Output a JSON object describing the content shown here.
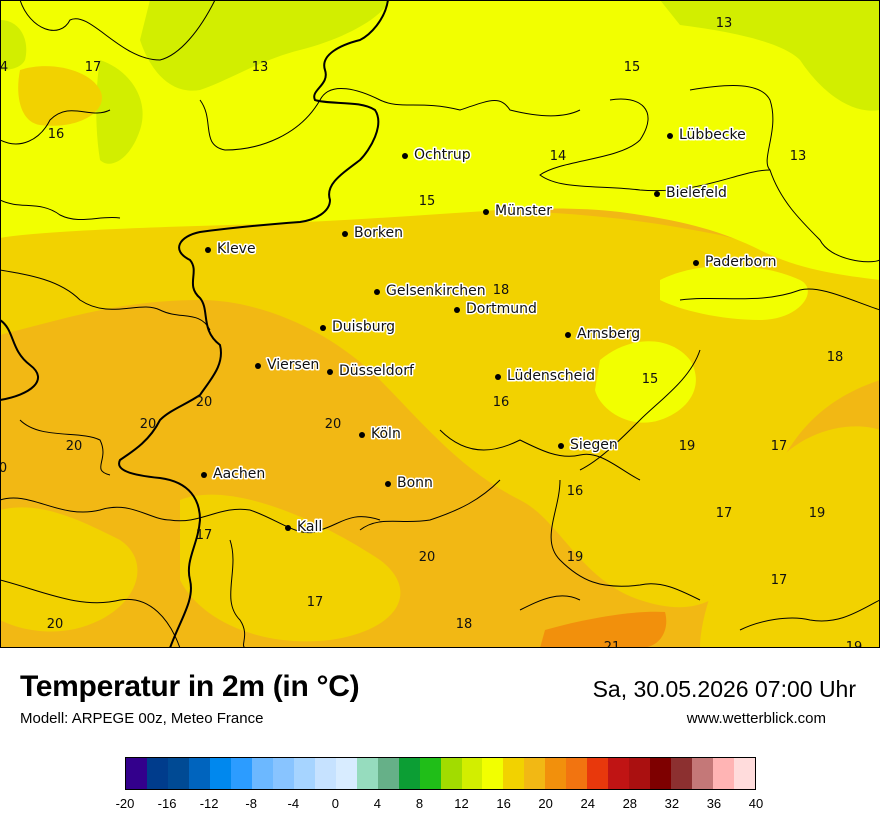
{
  "title": "Temperatur in 2m (in °C)",
  "model": "Modell: ARPEGE 00z, Meteo France",
  "datetime": "Sa, 30.05.2026 07:00 Uhr",
  "website": "www.wetterblick.com",
  "cities": [
    {
      "name": "Lübbecke"
    },
    {
      "name": "Ochtrup"
    },
    {
      "name": "Bielefeld"
    },
    {
      "name": "Münster"
    },
    {
      "name": "Borken"
    },
    {
      "name": "Kleve"
    },
    {
      "name": "Paderborn"
    },
    {
      "name": "Gelsenkirchen"
    },
    {
      "name": "Dortmund"
    },
    {
      "name": "Duisburg"
    },
    {
      "name": "Arnsberg"
    },
    {
      "name": "Viersen"
    },
    {
      "name": "Düsseldorf"
    },
    {
      "name": "Lüdenscheid"
    },
    {
      "name": "Köln"
    },
    {
      "name": "Siegen"
    },
    {
      "name": "Aachen"
    },
    {
      "name": "Bonn"
    },
    {
      "name": "Kall"
    }
  ],
  "values": [
    "13",
    "15",
    "4",
    "17",
    "13",
    "16",
    "14",
    "13",
    "15",
    "18",
    "18",
    "15",
    "16",
    "20",
    "20",
    "20",
    "19",
    "17",
    "0",
    "20",
    "16",
    "17",
    "17",
    "19",
    "17",
    "20",
    "19",
    "17",
    "20",
    "18",
    "21",
    "19"
  ],
  "legend": {
    "ticks": [
      "-20",
      "-16",
      "-12",
      "-8",
      "-4",
      "0",
      "4",
      "8",
      "12",
      "16",
      "20",
      "24",
      "28",
      "32",
      "36",
      "40"
    ],
    "colors": [
      "#33008c",
      "#003c8c",
      "#004a94",
      "#0064be",
      "#0088ee",
      "#2c9cff",
      "#6cb8ff",
      "#88c4ff",
      "#a6d4ff",
      "#c6e2ff",
      "#d8ecff",
      "#96dcbe",
      "#66b088",
      "#0c9e34",
      "#20be18",
      "#a2dc00",
      "#d2ee00",
      "#f2ff00",
      "#f2d200",
      "#f2b814",
      "#f2900c",
      "#f27410",
      "#e8380c",
      "#c01414",
      "#aa1010",
      "#7e0000",
      "#8c3030",
      "#c47878",
      "#ffb4b4",
      "#ffdcdc"
    ]
  }
}
